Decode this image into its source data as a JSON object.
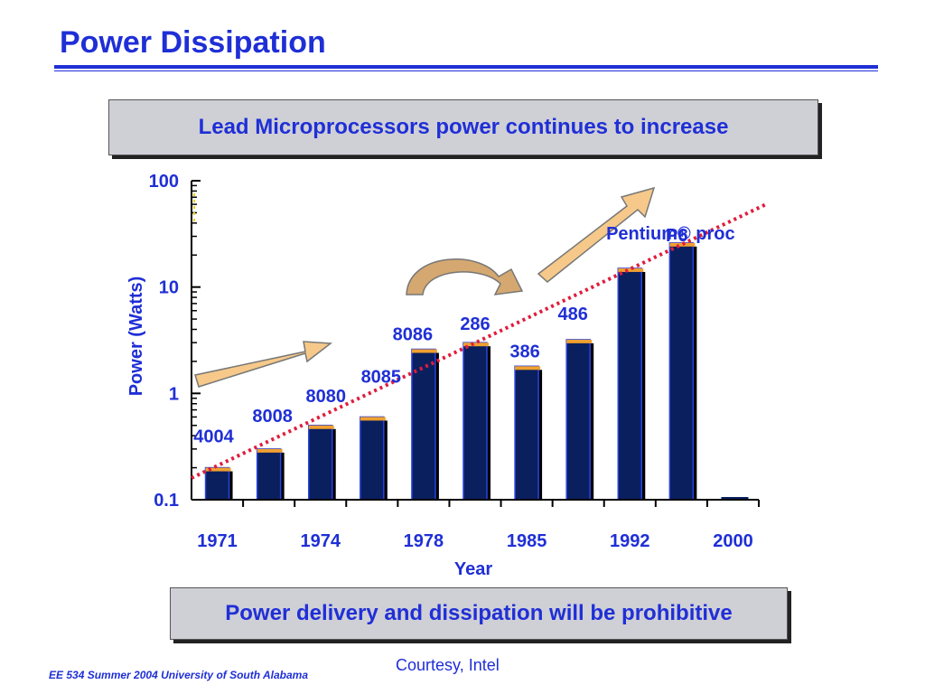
{
  "slide": {
    "title": "Power Dissipation",
    "callout_top": "Lead Microprocessors power continues to increase",
    "callout_bottom": "Power delivery and dissipation will be prohibitive",
    "courtesy": "Courtesy, Intel",
    "footer": "EE 534 Summer 2004 University of South Alabama"
  },
  "colors": {
    "title_blue": "#1f2fd6",
    "bar_navy": "#0a1f5e",
    "bar_edge": "#2a44e0",
    "bar_cap": "#f0a030",
    "trend_red": "#e01c3c",
    "arrow_fill": "#f6c98a"
  },
  "chart_data": {
    "type": "bar",
    "yscale": "log",
    "ylim": [
      0.1,
      100
    ],
    "yticks": [
      "100",
      "10",
      "1",
      "0.1"
    ],
    "ylabel": "Power (Watts)",
    "xlabel": "Year",
    "xticks": [
      "1971",
      "1974",
      "1978",
      "1985",
      "1992",
      "2000"
    ],
    "bars": [
      {
        "label": "4004",
        "value": 0.2
      },
      {
        "label": "8008",
        "value": 0.3
      },
      {
        "label": "8080",
        "value": 0.5
      },
      {
        "label": "8085",
        "value": 0.6
      },
      {
        "label": "8086",
        "value": 2.6
      },
      {
        "label": "286",
        "value": 3.0
      },
      {
        "label": "386",
        "value": 1.8
      },
      {
        "label": "486",
        "value": 3.2
      },
      {
        "label": "P6",
        "value": 15
      },
      {
        "label": "Pentium® proc",
        "value": 26
      },
      {
        "label": "",
        "value": 0.1
      }
    ],
    "trend_line": {
      "from_value": 0.16,
      "to_value": 60,
      "style": "dotted"
    }
  }
}
